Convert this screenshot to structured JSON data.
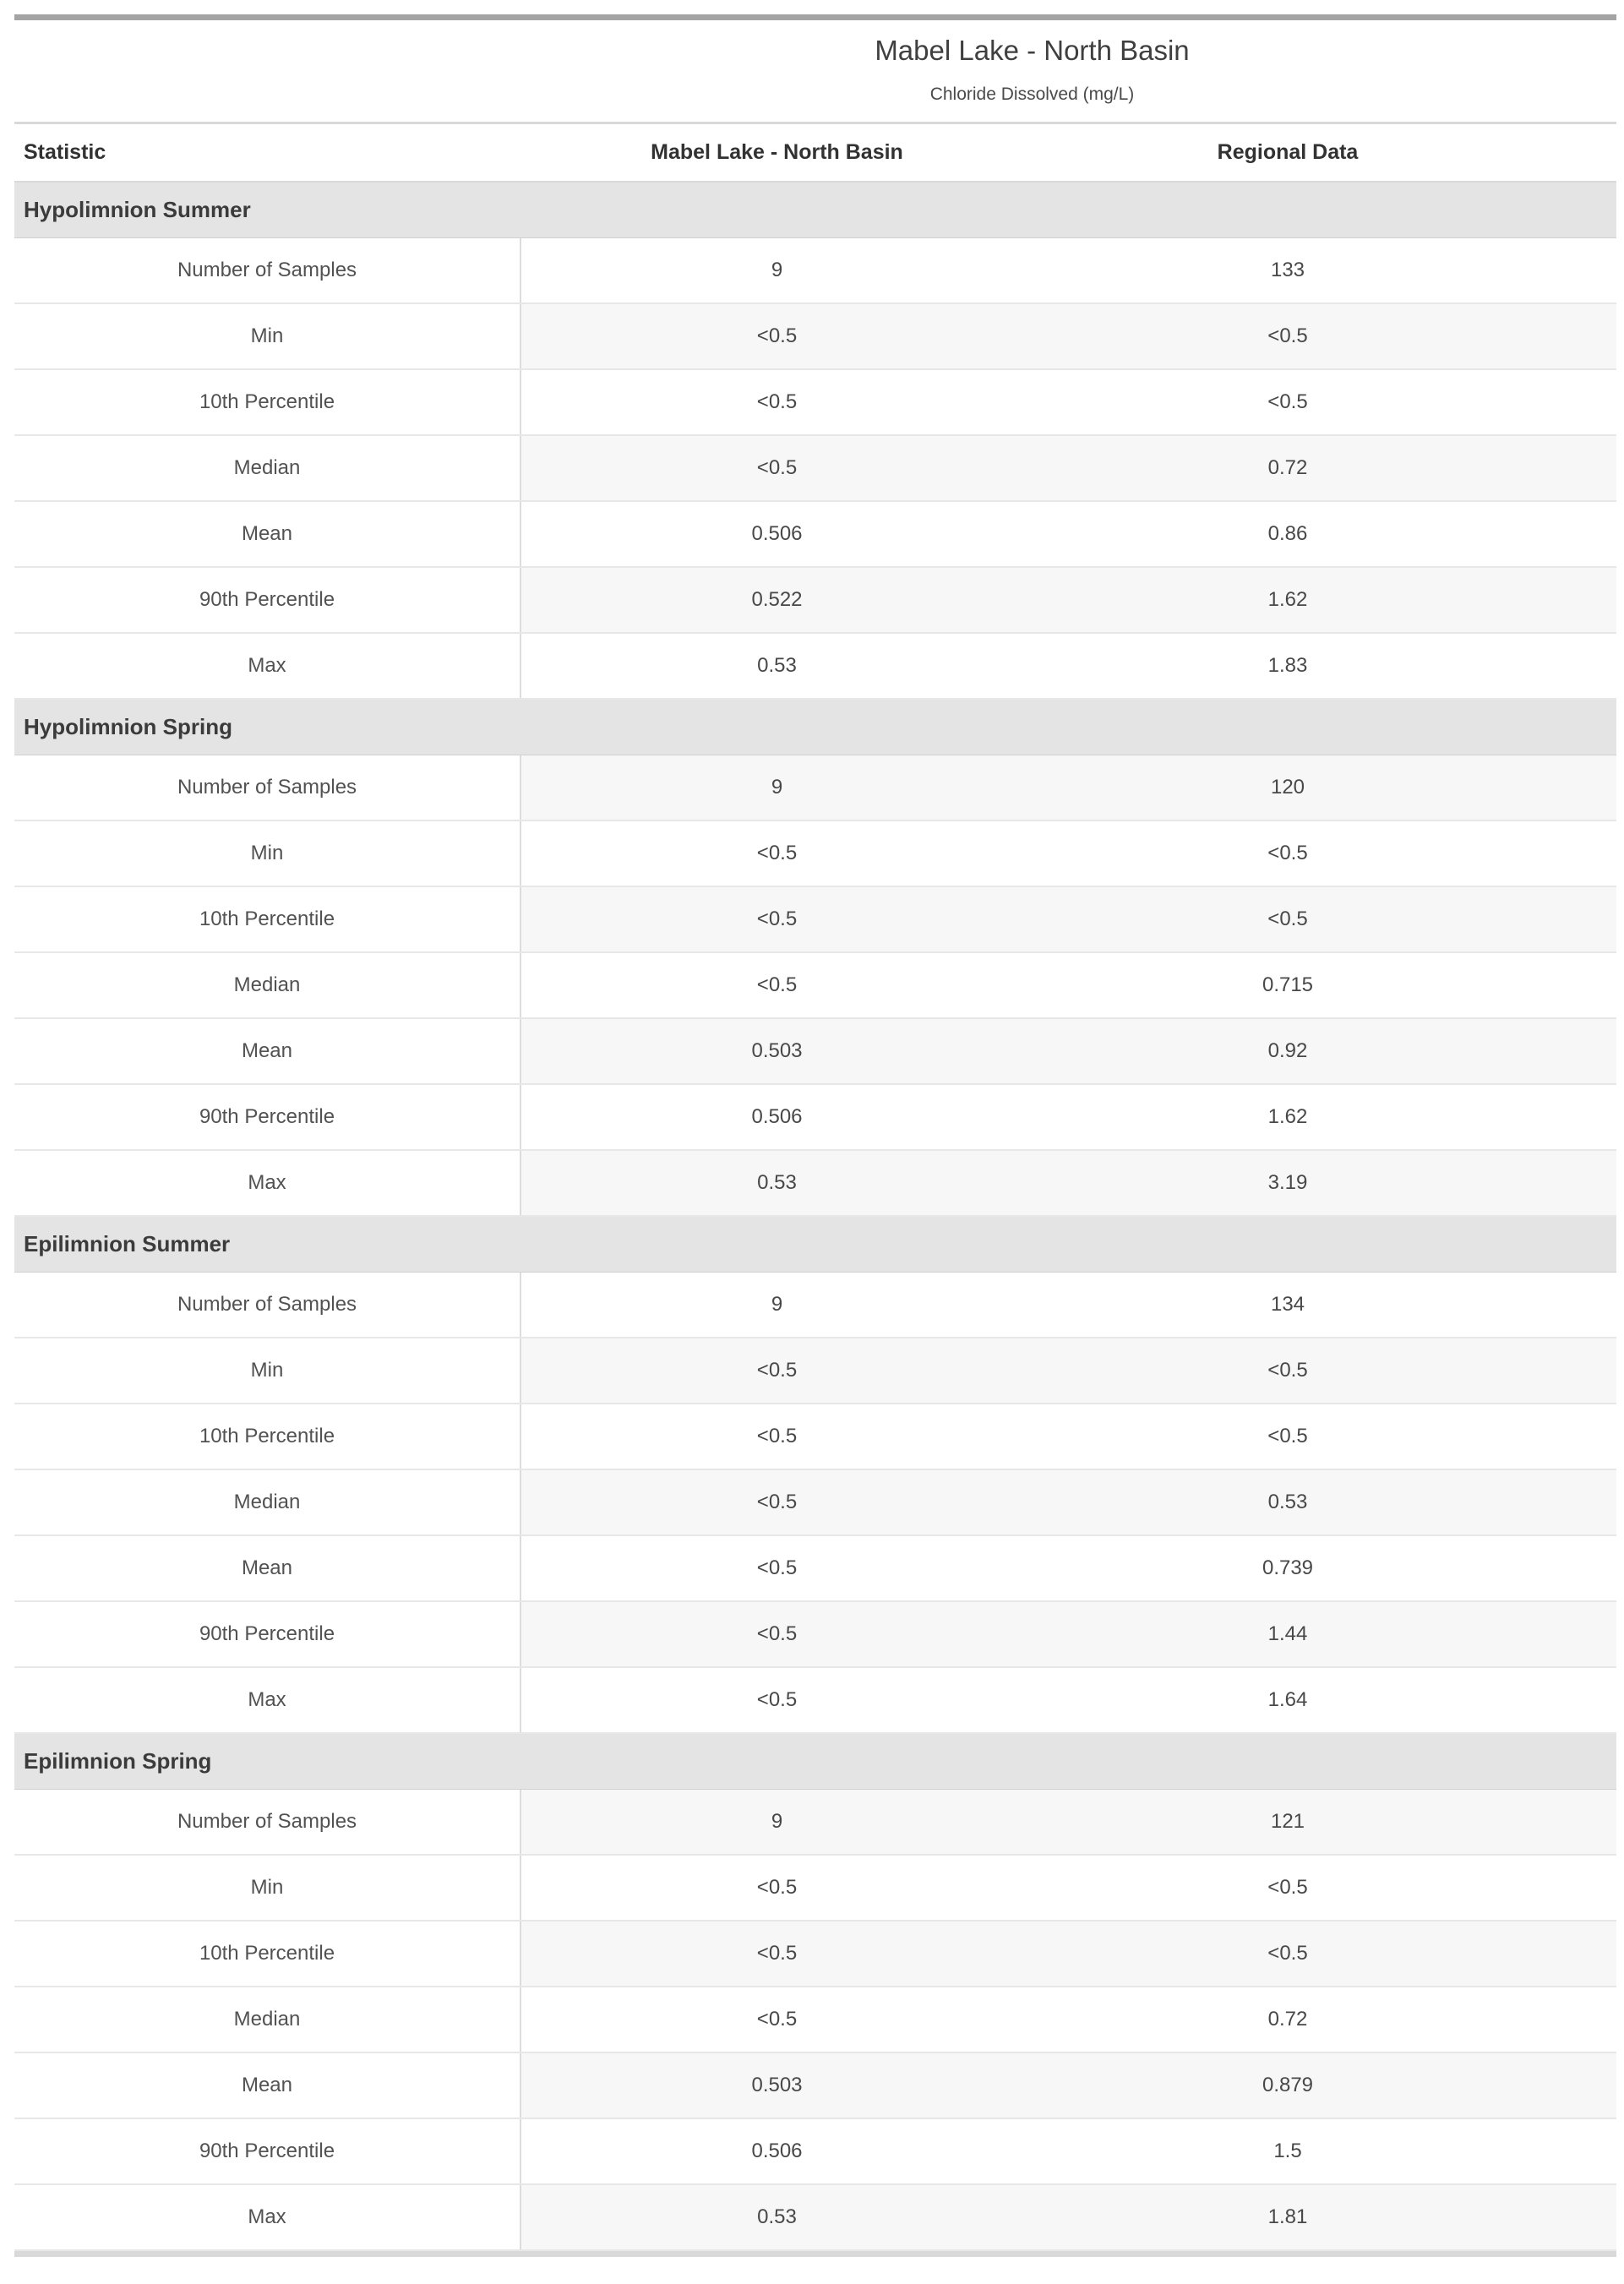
{
  "chart_data": {
    "type": "table",
    "title": "Mabel Lake - North Basin",
    "subtitle": "Chloride Dissolved (mg/L)",
    "columns": {
      "statistic": "Statistic",
      "site": "Mabel Lake - North Basin",
      "regional": "Regional Data"
    },
    "sections": [
      {
        "label": "Hypolimnion Summer",
        "rows": [
          {
            "statistic": "Number of Samples",
            "site": "9",
            "regional": "133"
          },
          {
            "statistic": "Min",
            "site": "<0.5",
            "regional": "<0.5"
          },
          {
            "statistic": "10th Percentile",
            "site": "<0.5",
            "regional": "<0.5"
          },
          {
            "statistic": "Median",
            "site": "<0.5",
            "regional": "0.72"
          },
          {
            "statistic": "Mean",
            "site": "0.506",
            "regional": "0.86"
          },
          {
            "statistic": "90th Percentile",
            "site": "0.522",
            "regional": "1.62"
          },
          {
            "statistic": "Max",
            "site": "0.53",
            "regional": "1.83"
          }
        ]
      },
      {
        "label": "Hypolimnion Spring",
        "rows": [
          {
            "statistic": "Number of Samples",
            "site": "9",
            "regional": "120"
          },
          {
            "statistic": "Min",
            "site": "<0.5",
            "regional": "<0.5"
          },
          {
            "statistic": "10th Percentile",
            "site": "<0.5",
            "regional": "<0.5"
          },
          {
            "statistic": "Median",
            "site": "<0.5",
            "regional": "0.715"
          },
          {
            "statistic": "Mean",
            "site": "0.503",
            "regional": "0.92"
          },
          {
            "statistic": "90th Percentile",
            "site": "0.506",
            "regional": "1.62"
          },
          {
            "statistic": "Max",
            "site": "0.53",
            "regional": "3.19"
          }
        ]
      },
      {
        "label": "Epilimnion Summer",
        "rows": [
          {
            "statistic": "Number of Samples",
            "site": "9",
            "regional": "134"
          },
          {
            "statistic": "Min",
            "site": "<0.5",
            "regional": "<0.5"
          },
          {
            "statistic": "10th Percentile",
            "site": "<0.5",
            "regional": "<0.5"
          },
          {
            "statistic": "Median",
            "site": "<0.5",
            "regional": "0.53"
          },
          {
            "statistic": "Mean",
            "site": "<0.5",
            "regional": "0.739"
          },
          {
            "statistic": "90th Percentile",
            "site": "<0.5",
            "regional": "1.44"
          },
          {
            "statistic": "Max",
            "site": "<0.5",
            "regional": "1.64"
          }
        ]
      },
      {
        "label": "Epilimnion Spring",
        "rows": [
          {
            "statistic": "Number of Samples",
            "site": "9",
            "regional": "121"
          },
          {
            "statistic": "Min",
            "site": "<0.5",
            "regional": "<0.5"
          },
          {
            "statistic": "10th Percentile",
            "site": "<0.5",
            "regional": "<0.5"
          },
          {
            "statistic": "Median",
            "site": "<0.5",
            "regional": "0.72"
          },
          {
            "statistic": "Mean",
            "site": "0.503",
            "regional": "0.879"
          },
          {
            "statistic": "90th Percentile",
            "site": "0.506",
            "regional": "1.5"
          },
          {
            "statistic": "Max",
            "site": "0.53",
            "regional": "1.81"
          }
        ]
      }
    ],
    "layout_hints": {
      "striping": "alternate data rows counted globally; stripe applies to data columns only",
      "stripe_color": "#f7f7f7",
      "top_bar_color": "#a4a4a4",
      "bottom_bar_color": "#d9d9d9",
      "section_bar_color": "#e4e4e4"
    }
  }
}
